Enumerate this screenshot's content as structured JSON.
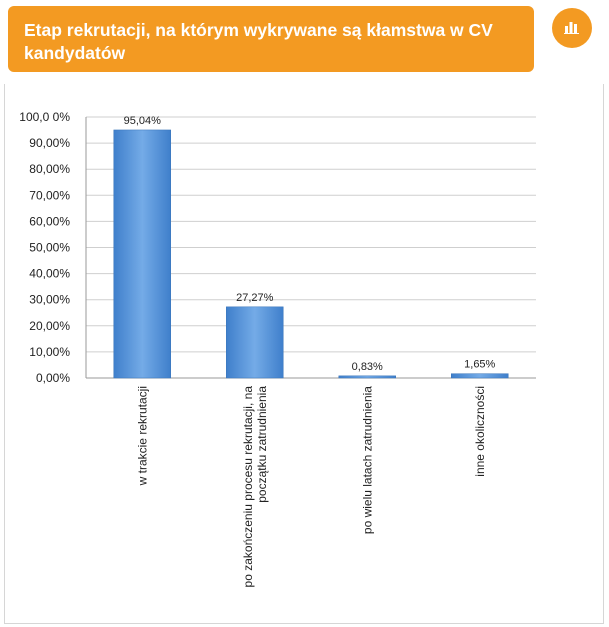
{
  "header": {
    "title": "Etap rekrutacji, na którym wykrywane są kłamstwa w CV kandydatów"
  },
  "icons": {
    "chart_button": "bar-chart-icon"
  },
  "colors": {
    "accent": "#f39a22",
    "bar": "#4f8fd6",
    "bar_light": "#74abe7",
    "grid": "#cfcfcf"
  },
  "chart_data": {
    "type": "bar",
    "categories": [
      [
        "w trakcie rekrutacji"
      ],
      [
        "po zakończeniu procesu rekrutacji, na",
        "początku zatrudnienia"
      ],
      [
        "po wielu latach zatrudnienia"
      ],
      [
        "inne okoliczności"
      ]
    ],
    "values": [
      95.04,
      27.27,
      0.83,
      1.65
    ],
    "data_labels": [
      "95,04%",
      "27,27%",
      "0,83%",
      "1,65%"
    ],
    "ytick_labels": [
      "0,00%",
      "10,00%",
      "20,00%",
      "30,00%",
      "40,00%",
      "50,00%",
      "60,00%",
      "70,00%",
      "80,00%",
      "90,00%",
      "100,0  0%"
    ],
    "ylim": [
      0,
      100
    ],
    "grid": true,
    "legend": "none",
    "title": "",
    "xlabel": "",
    "ylabel": ""
  }
}
